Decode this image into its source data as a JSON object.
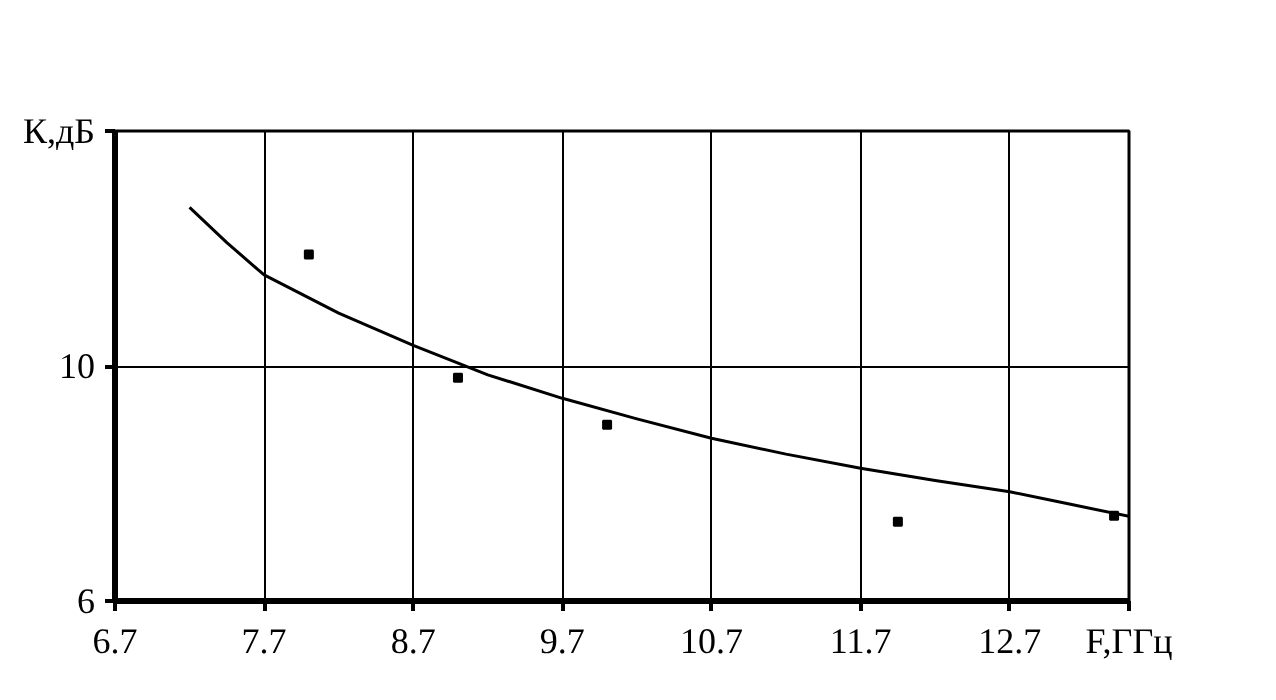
{
  "chart_data": {
    "type": "scatter",
    "xlabel": "F,ГГц",
    "ylabel": "К,дБ",
    "xlim": [
      6.7,
      13.5
    ],
    "ylim": [
      6,
      14
    ],
    "xticks": [
      6.7,
      7.7,
      8.7,
      9.7,
      10.7,
      11.7,
      12.7
    ],
    "yticks": [
      6,
      10
    ],
    "grid": true,
    "marker": "square",
    "series": [
      {
        "color": "#000000",
        "x": [
          8.0,
          9.0,
          10.0,
          11.95,
          13.4
        ],
        "values": [
          11.9,
          9.8,
          9.0,
          7.35,
          7.45
        ]
      },
      {
        "type": "line",
        "color": "#000000",
        "marker": "none",
        "x": [
          7.2,
          7.45,
          7.7,
          8.2,
          8.7,
          9.2,
          9.7,
          10.2,
          10.7,
          11.2,
          11.7,
          12.2,
          12.7,
          13.1,
          13.5
        ],
        "values": [
          12.7,
          12.1,
          11.55,
          10.9,
          10.35,
          9.85,
          9.45,
          9.1,
          8.77,
          8.5,
          8.26,
          8.05,
          7.86,
          7.65,
          7.44
        ]
      }
    ]
  }
}
